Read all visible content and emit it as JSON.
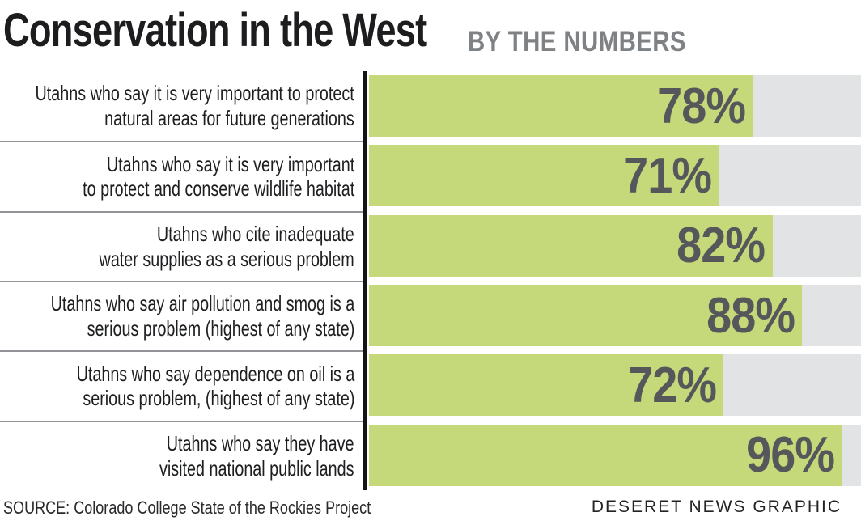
{
  "header": {
    "title": "Conservation in the West",
    "subtitle": "BY THE NUMBERS"
  },
  "chart_data": {
    "type": "bar",
    "orientation": "horizontal",
    "title": "Conservation in the West — By the Numbers",
    "unit": "%",
    "xlim": [
      0,
      100
    ],
    "categories": [
      "Utahns who say it is very important to protect natural areas for future generations",
      "Utahns who say it is very important to protect and conserve wildlife habitat",
      "Utahns who cite inadequate water supplies as a serious problem",
      "Utahns who say air pollution and smog is a serious problem (highest of any state)",
      "Utahns who say dependence on oil is a serious problem, (highest of any state)",
      "Utahns who say they have visited national public lands"
    ],
    "values": [
      78,
      71,
      82,
      88,
      72,
      96
    ],
    "bar_color": "#c5d87a",
    "track_color": "#e2e3e5",
    "value_label_color": "#56575b",
    "grid": false,
    "legend": false
  },
  "rows": [
    {
      "label_line1": "Utahns who say it is very important to protect",
      "label_line2": "natural areas for future generations",
      "value": 78,
      "value_label": "78%"
    },
    {
      "label_line1": "Utahns who say it is very important",
      "label_line2": "to protect and conserve wildlife habitat",
      "value": 71,
      "value_label": "71%"
    },
    {
      "label_line1": "Utahns who cite inadequate",
      "label_line2": "water supplies as a serious problem",
      "value": 82,
      "value_label": "82%"
    },
    {
      "label_line1": "Utahns who say air pollution and smog is a",
      "label_line2": "serious problem (highest of any state)",
      "value": 88,
      "value_label": "88%"
    },
    {
      "label_line1": "Utahns who say dependence on oil is a",
      "label_line2": "serious problem, (highest of any state)",
      "value": 72,
      "value_label": "72%"
    },
    {
      "label_line1": "Utahns who say they have",
      "label_line2": "visited national public lands",
      "value": 96,
      "value_label": "96%"
    }
  ],
  "footer": {
    "source": "SOURCE: Colorado College State of the Rockies Project",
    "credit": "DESERET NEWS GRAPHIC"
  }
}
